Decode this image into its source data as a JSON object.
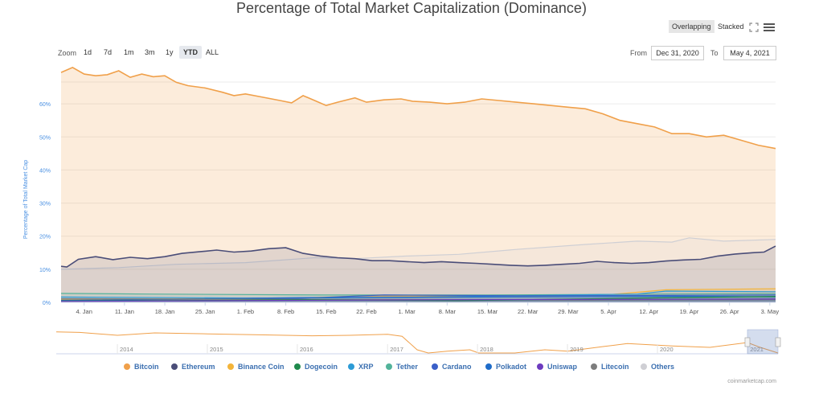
{
  "title": "Percentage of Total Market Capitalization (Dominance)",
  "view_modes": [
    "Overlapping",
    "Stacked"
  ],
  "active_view_mode": "Overlapping",
  "zoom": {
    "label": "Zoom",
    "options": [
      "1d",
      "7d",
      "1m",
      "3m",
      "1y",
      "YTD",
      "ALL"
    ],
    "active": "YTD"
  },
  "range": {
    "from_label": "From",
    "from": "Dec 31, 2020",
    "to_label": "To",
    "to": "May 4, 2021"
  },
  "credit": "coinmarketcap.com",
  "icons": {
    "fullscreen": "fullscreen-icon",
    "menu": "hamburger-menu-icon"
  },
  "chart_data": {
    "type": "area",
    "ylabel": "Percentage of Total Market Cap",
    "ylim": [
      0,
      70
    ],
    "y_ticks": [
      "0%",
      "10%",
      "20%",
      "30%",
      "40%",
      "50%",
      "60%"
    ],
    "x_ticks": [
      "4. Jan",
      "11. Jan",
      "18. Jan",
      "25. Jan",
      "1. Feb",
      "8. Feb",
      "15. Feb",
      "22. Feb",
      "1. Mar",
      "8. Mar",
      "15. Mar",
      "22. Mar",
      "29. Mar",
      "5. Apr",
      "12. Apr",
      "19. Apr",
      "26. Apr",
      "3. May"
    ],
    "x_start": "2020-12-31",
    "x_end": "2021-05-04",
    "grid": true,
    "legend_position": "bottom",
    "series": [
      {
        "name": "Bitcoin",
        "color": "#f0a04a",
        "points": [
          [
            "2020-12-31",
            69.5
          ],
          [
            "2021-01-02",
            71.0
          ],
          [
            "2021-01-04",
            69.0
          ],
          [
            "2021-01-06",
            68.5
          ],
          [
            "2021-01-08",
            68.8
          ],
          [
            "2021-01-10",
            70.0
          ],
          [
            "2021-01-12",
            68.0
          ],
          [
            "2021-01-14",
            69.0
          ],
          [
            "2021-01-16",
            68.2
          ],
          [
            "2021-01-18",
            68.5
          ],
          [
            "2021-01-20",
            66.5
          ],
          [
            "2021-01-22",
            65.5
          ],
          [
            "2021-01-25",
            64.8
          ],
          [
            "2021-01-28",
            63.5
          ],
          [
            "2021-01-30",
            62.5
          ],
          [
            "2021-02-01",
            63.0
          ],
          [
            "2021-02-04",
            62.0
          ],
          [
            "2021-02-07",
            61.0
          ],
          [
            "2021-02-09",
            60.3
          ],
          [
            "2021-02-11",
            62.5
          ],
          [
            "2021-02-13",
            61.0
          ],
          [
            "2021-02-15",
            59.5
          ],
          [
            "2021-02-17",
            60.5
          ],
          [
            "2021-02-20",
            61.8
          ],
          [
            "2021-02-22",
            60.5
          ],
          [
            "2021-02-25",
            61.2
          ],
          [
            "2021-02-28",
            61.5
          ],
          [
            "2021-03-02",
            60.8
          ],
          [
            "2021-03-05",
            60.5
          ],
          [
            "2021-03-08",
            60.0
          ],
          [
            "2021-03-11",
            60.5
          ],
          [
            "2021-03-14",
            61.5
          ],
          [
            "2021-03-17",
            61.0
          ],
          [
            "2021-03-20",
            60.5
          ],
          [
            "2021-03-23",
            60.0
          ],
          [
            "2021-03-26",
            59.5
          ],
          [
            "2021-03-29",
            59.0
          ],
          [
            "2021-04-01",
            58.5
          ],
          [
            "2021-04-04",
            57.0
          ],
          [
            "2021-04-07",
            55.0
          ],
          [
            "2021-04-10",
            54.0
          ],
          [
            "2021-04-13",
            53.0
          ],
          [
            "2021-04-16",
            51.0
          ],
          [
            "2021-04-19",
            51.0
          ],
          [
            "2021-04-22",
            50.0
          ],
          [
            "2021-04-25",
            50.5
          ],
          [
            "2021-04-28",
            49.0
          ],
          [
            "2021-05-01",
            47.5
          ],
          [
            "2021-05-04",
            46.5
          ]
        ]
      },
      {
        "name": "Ethereum",
        "color": "#4a4d78",
        "points": [
          [
            "2020-12-31",
            10.9
          ],
          [
            "2021-01-01",
            10.7
          ],
          [
            "2021-01-03",
            13.0
          ],
          [
            "2021-01-06",
            13.8
          ],
          [
            "2021-01-09",
            12.9
          ],
          [
            "2021-01-12",
            13.6
          ],
          [
            "2021-01-15",
            13.2
          ],
          [
            "2021-01-18",
            13.8
          ],
          [
            "2021-01-21",
            14.8
          ],
          [
            "2021-01-24",
            15.3
          ],
          [
            "2021-01-27",
            15.8
          ],
          [
            "2021-01-30",
            15.2
          ],
          [
            "2021-02-02",
            15.5
          ],
          [
            "2021-02-05",
            16.2
          ],
          [
            "2021-02-08",
            16.5
          ],
          [
            "2021-02-11",
            14.8
          ],
          [
            "2021-02-14",
            14.0
          ],
          [
            "2021-02-17",
            13.5
          ],
          [
            "2021-02-20",
            13.2
          ],
          [
            "2021-02-23",
            12.6
          ],
          [
            "2021-02-26",
            12.6
          ],
          [
            "2021-03-01",
            12.3
          ],
          [
            "2021-03-04",
            12.0
          ],
          [
            "2021-03-07",
            12.3
          ],
          [
            "2021-03-10",
            12.0
          ],
          [
            "2021-03-13",
            11.8
          ],
          [
            "2021-03-16",
            11.5
          ],
          [
            "2021-03-19",
            11.2
          ],
          [
            "2021-03-22",
            11.0
          ],
          [
            "2021-03-25",
            11.2
          ],
          [
            "2021-03-28",
            11.5
          ],
          [
            "2021-03-31",
            11.8
          ],
          [
            "2021-04-03",
            12.4
          ],
          [
            "2021-04-06",
            12.0
          ],
          [
            "2021-04-09",
            11.8
          ],
          [
            "2021-04-12",
            12.0
          ],
          [
            "2021-04-15",
            12.5
          ],
          [
            "2021-04-18",
            12.8
          ],
          [
            "2021-04-21",
            13.0
          ],
          [
            "2021-04-24",
            14.0
          ],
          [
            "2021-04-27",
            14.6
          ],
          [
            "2021-04-30",
            15.0
          ],
          [
            "2021-05-02",
            15.2
          ],
          [
            "2021-05-04",
            17.0
          ]
        ]
      },
      {
        "name": "Binance Coin",
        "color": "#f3b43a",
        "points": [
          [
            "2020-12-31",
            0.9
          ],
          [
            "2021-01-20",
            1.0
          ],
          [
            "2021-02-10",
            1.3
          ],
          [
            "2021-02-20",
            1.9
          ],
          [
            "2021-03-10",
            1.9
          ],
          [
            "2021-03-25",
            2.0
          ],
          [
            "2021-04-05",
            2.3
          ],
          [
            "2021-04-15",
            3.8
          ],
          [
            "2021-05-04",
            4.1
          ]
        ]
      },
      {
        "name": "Dogecoin",
        "color": "#1f8a4c",
        "points": [
          [
            "2020-12-31",
            0.4
          ],
          [
            "2021-01-29",
            0.6
          ],
          [
            "2021-02-10",
            0.8
          ],
          [
            "2021-03-10",
            0.5
          ],
          [
            "2021-04-16",
            1.4
          ],
          [
            "2021-05-04",
            1.8
          ]
        ]
      },
      {
        "name": "XRP",
        "color": "#2d9bd6",
        "points": [
          [
            "2020-12-31",
            1.6
          ],
          [
            "2021-02-01",
            1.3
          ],
          [
            "2021-03-01",
            1.5
          ],
          [
            "2021-04-10",
            2.5
          ],
          [
            "2021-04-15",
            3.4
          ],
          [
            "2021-05-04",
            3.2
          ]
        ]
      },
      {
        "name": "Tether",
        "color": "#52b39a",
        "points": [
          [
            "2020-12-31",
            2.7
          ],
          [
            "2021-01-15",
            2.5
          ],
          [
            "2021-02-15",
            2.2
          ],
          [
            "2021-03-15",
            2.2
          ],
          [
            "2021-04-15",
            2.5
          ],
          [
            "2021-05-04",
            2.6
          ]
        ]
      },
      {
        "name": "Cardano",
        "color": "#3a5fc8",
        "points": [
          [
            "2020-12-31",
            0.6
          ],
          [
            "2021-02-10",
            1.2
          ],
          [
            "2021-02-25",
            2.2
          ],
          [
            "2021-03-20",
            2.0
          ],
          [
            "2021-04-15",
            2.1
          ],
          [
            "2021-05-04",
            2.2
          ]
        ]
      },
      {
        "name": "Polkadot",
        "color": "#1f6cc9",
        "points": [
          [
            "2020-12-31",
            0.5
          ],
          [
            "2021-02-10",
            1.4
          ],
          [
            "2021-03-10",
            1.6
          ],
          [
            "2021-04-15",
            1.8
          ],
          [
            "2021-05-04",
            1.7
          ]
        ]
      },
      {
        "name": "Uniswap",
        "color": "#6d3bbf",
        "points": [
          [
            "2020-12-31",
            0.3
          ],
          [
            "2021-02-10",
            0.6
          ],
          [
            "2021-03-10",
            0.8
          ],
          [
            "2021-05-04",
            1.0
          ]
        ]
      },
      {
        "name": "Litecoin",
        "color": "#7d7d7d",
        "points": [
          [
            "2020-12-31",
            1.1
          ],
          [
            "2021-02-10",
            0.9
          ],
          [
            "2021-04-01",
            0.7
          ],
          [
            "2021-05-04",
            0.8
          ]
        ]
      },
      {
        "name": "Others",
        "color": "#cfcfd4",
        "points": [
          [
            "2020-12-31",
            10.0
          ],
          [
            "2021-01-10",
            10.5
          ],
          [
            "2021-01-20",
            11.5
          ],
          [
            "2021-02-01",
            12.0
          ],
          [
            "2021-02-13",
            13.5
          ],
          [
            "2021-02-20",
            13.2
          ],
          [
            "2021-03-01",
            14.0
          ],
          [
            "2021-03-10",
            14.5
          ],
          [
            "2021-03-20",
            16.0
          ],
          [
            "2021-04-01",
            17.5
          ],
          [
            "2021-04-10",
            18.5
          ],
          [
            "2021-04-16",
            18.2
          ],
          [
            "2021-04-19",
            19.5
          ],
          [
            "2021-04-25",
            18.5
          ],
          [
            "2021-05-04",
            19.0
          ]
        ]
      }
    ],
    "navigator": {
      "x_ticks": [
        "2014",
        "2015",
        "2016",
        "2017",
        "2018",
        "2019",
        "2020",
        "2021"
      ],
      "x_start": "2013-04-28",
      "x_end": "2021-05-04",
      "selected_from": "2020-12-31",
      "selected_to": "2021-05-04",
      "bitcoin_points": [
        [
          "2013-04-28",
          92
        ],
        [
          "2013-08-01",
          91
        ],
        [
          "2014-01-01",
          85
        ],
        [
          "2014-06-01",
          90
        ],
        [
          "2015-01-01",
          88
        ],
        [
          "2015-08-01",
          86
        ],
        [
          "2016-03-01",
          84
        ],
        [
          "2016-08-01",
          85
        ],
        [
          "2017-01-01",
          87
        ],
        [
          "2017-03-01",
          83
        ],
        [
          "2017-05-01",
          55
        ],
        [
          "2017-06-15",
          42
        ],
        [
          "2017-09-01",
          52
        ],
        [
          "2017-12-01",
          55
        ],
        [
          "2018-01-05",
          36
        ],
        [
          "2018-03-01",
          42
        ],
        [
          "2018-06-01",
          40
        ],
        [
          "2018-10-01",
          55
        ],
        [
          "2019-01-01",
          52
        ],
        [
          "2019-06-01",
          62
        ],
        [
          "2019-09-01",
          68
        ],
        [
          "2020-03-01",
          63
        ],
        [
          "2020-08-01",
          60
        ],
        [
          "2020-12-31",
          70
        ],
        [
          "2021-02-15",
          61
        ],
        [
          "2021-05-04",
          46
        ]
      ]
    }
  }
}
